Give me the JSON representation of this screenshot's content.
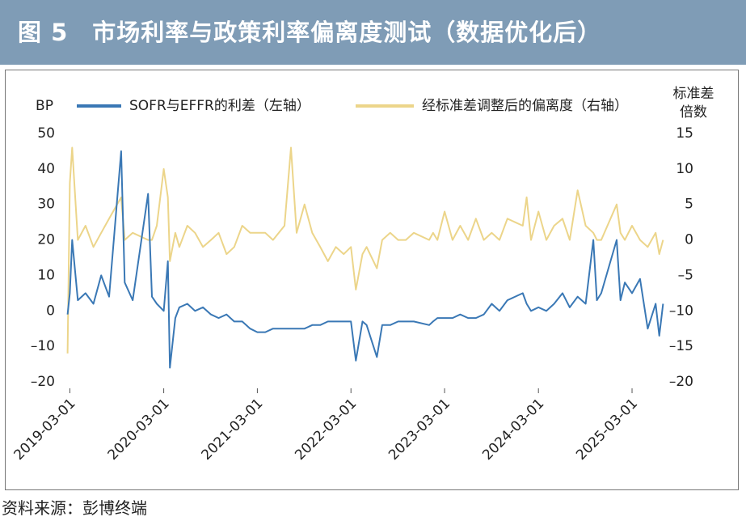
{
  "chart_data": {
    "type": "line",
    "title": "图 5　市场利率与政策利率偏离度测试（数据优化后）",
    "ylabel": "BP",
    "y2label": "标准差倍数",
    "source": "资料来源：彭博终端",
    "xlim": [
      "2019-02-15",
      "2025-07-05"
    ],
    "xticks": [
      "2019-03-01",
      "2020-03-01",
      "2021-03-01",
      "2022-03-01",
      "2023-03-01",
      "2024-03-01",
      "2025-03-01"
    ],
    "ylim": [
      -20,
      50
    ],
    "yticks": [
      {
        "value": -20,
        "label": "–20"
      },
      {
        "value": -10,
        "label": "–10"
      },
      0,
      10,
      20,
      30,
      40,
      50
    ],
    "y2lim": [
      -20,
      15
    ],
    "y2ticks": [
      {
        "value": -20,
        "label": "–20"
      },
      {
        "value": -15,
        "label": "–15"
      },
      {
        "value": -10,
        "label": "–10"
      },
      {
        "value": -5,
        "label": "–5"
      },
      0,
      5,
      10,
      15
    ],
    "x": [
      "2019-02-20",
      "2019-03-01",
      "2019-03-10",
      "2019-04-01",
      "2019-05-01",
      "2019-06-01",
      "2019-07-01",
      "2019-08-01",
      "2019-09-17",
      "2019-10-01",
      "2019-11-01",
      "2019-12-31",
      "2020-01-15",
      "2020-02-03",
      "2020-03-01",
      "2020-03-17",
      "2020-03-25",
      "2020-04-15",
      "2020-05-01",
      "2020-06-01",
      "2020-07-01",
      "2020-08-01",
      "2020-09-01",
      "2020-10-01",
      "2020-11-01",
      "2020-12-01",
      "2021-01-01",
      "2021-02-01",
      "2021-03-01",
      "2021-04-01",
      "2021-05-01",
      "2021-06-15",
      "2021-07-10",
      "2021-08-01",
      "2021-09-01",
      "2021-10-01",
      "2021-11-01",
      "2021-12-01",
      "2022-01-01",
      "2022-02-01",
      "2022-03-01",
      "2022-03-20",
      "2022-04-15",
      "2022-05-01",
      "2022-06-10",
      "2022-07-01",
      "2022-08-01",
      "2022-09-01",
      "2022-10-01",
      "2022-11-01",
      "2022-12-31",
      "2023-01-15",
      "2023-02-01",
      "2023-03-01",
      "2023-04-01",
      "2023-05-01",
      "2023-06-01",
      "2023-07-01",
      "2023-08-01",
      "2023-09-01",
      "2023-10-01",
      "2023-11-01",
      "2023-12-31",
      "2024-01-15",
      "2024-02-01",
      "2024-03-01",
      "2024-04-01",
      "2024-05-01",
      "2024-06-03",
      "2024-07-01",
      "2024-08-01",
      "2024-09-01",
      "2024-10-01",
      "2024-10-15",
      "2024-11-01",
      "2024-12-31",
      "2025-01-15",
      "2025-02-01",
      "2025-03-01",
      "2025-04-01",
      "2025-05-01",
      "2025-06-01",
      "2025-06-15",
      "2025-06-30"
    ],
    "series": [
      {
        "name": "SOFR与EFFR的利差（左轴）",
        "color": "#3a78b5",
        "values": [
          -1,
          5,
          20,
          3,
          5,
          2,
          10,
          4,
          45,
          8,
          3,
          33,
          4,
          2,
          0,
          14,
          -16,
          -2,
          1,
          2,
          0,
          1,
          -1,
          -2,
          -1,
          -3,
          -3,
          -5,
          -6,
          -6,
          -5,
          -5,
          -5,
          -5,
          -5,
          -4,
          -4,
          -3,
          -3,
          -3,
          -3,
          -14,
          -3,
          -4,
          -13,
          -4,
          -4,
          -3,
          -3,
          -3,
          -4,
          -3,
          -2,
          -2,
          -2,
          -1,
          -2,
          -2,
          -1,
          2,
          0,
          3,
          5,
          2,
          0,
          1,
          0,
          2,
          5,
          1,
          4,
          2,
          20,
          3,
          5,
          20,
          3,
          8,
          5,
          9,
          -5,
          2,
          -7,
          2
        ]
      },
      {
        "name": "经标准差调整后的偏离度（右轴）",
        "color": "#ecd58a",
        "axis": "y2",
        "values": [
          -16,
          8,
          13,
          0,
          2,
          -1,
          1,
          3,
          6,
          0,
          1,
          0,
          0,
          2,
          10,
          6,
          -3,
          1,
          -1,
          2,
          1,
          -1,
          0,
          1,
          -2,
          -1,
          2,
          1,
          1,
          1,
          0,
          2,
          13,
          1,
          5,
          1,
          -1,
          -3,
          -1,
          -2,
          -1,
          -7,
          -2,
          -1,
          -4,
          0,
          1,
          0,
          0,
          1,
          0,
          1,
          0,
          4,
          0,
          2,
          0,
          3,
          0,
          1,
          0,
          3,
          2,
          6,
          0,
          4,
          0,
          2,
          3,
          0,
          7,
          2,
          1,
          0,
          0,
          5,
          1,
          0,
          2,
          0,
          -1,
          1,
          -2,
          0
        ]
      }
    ]
  }
}
